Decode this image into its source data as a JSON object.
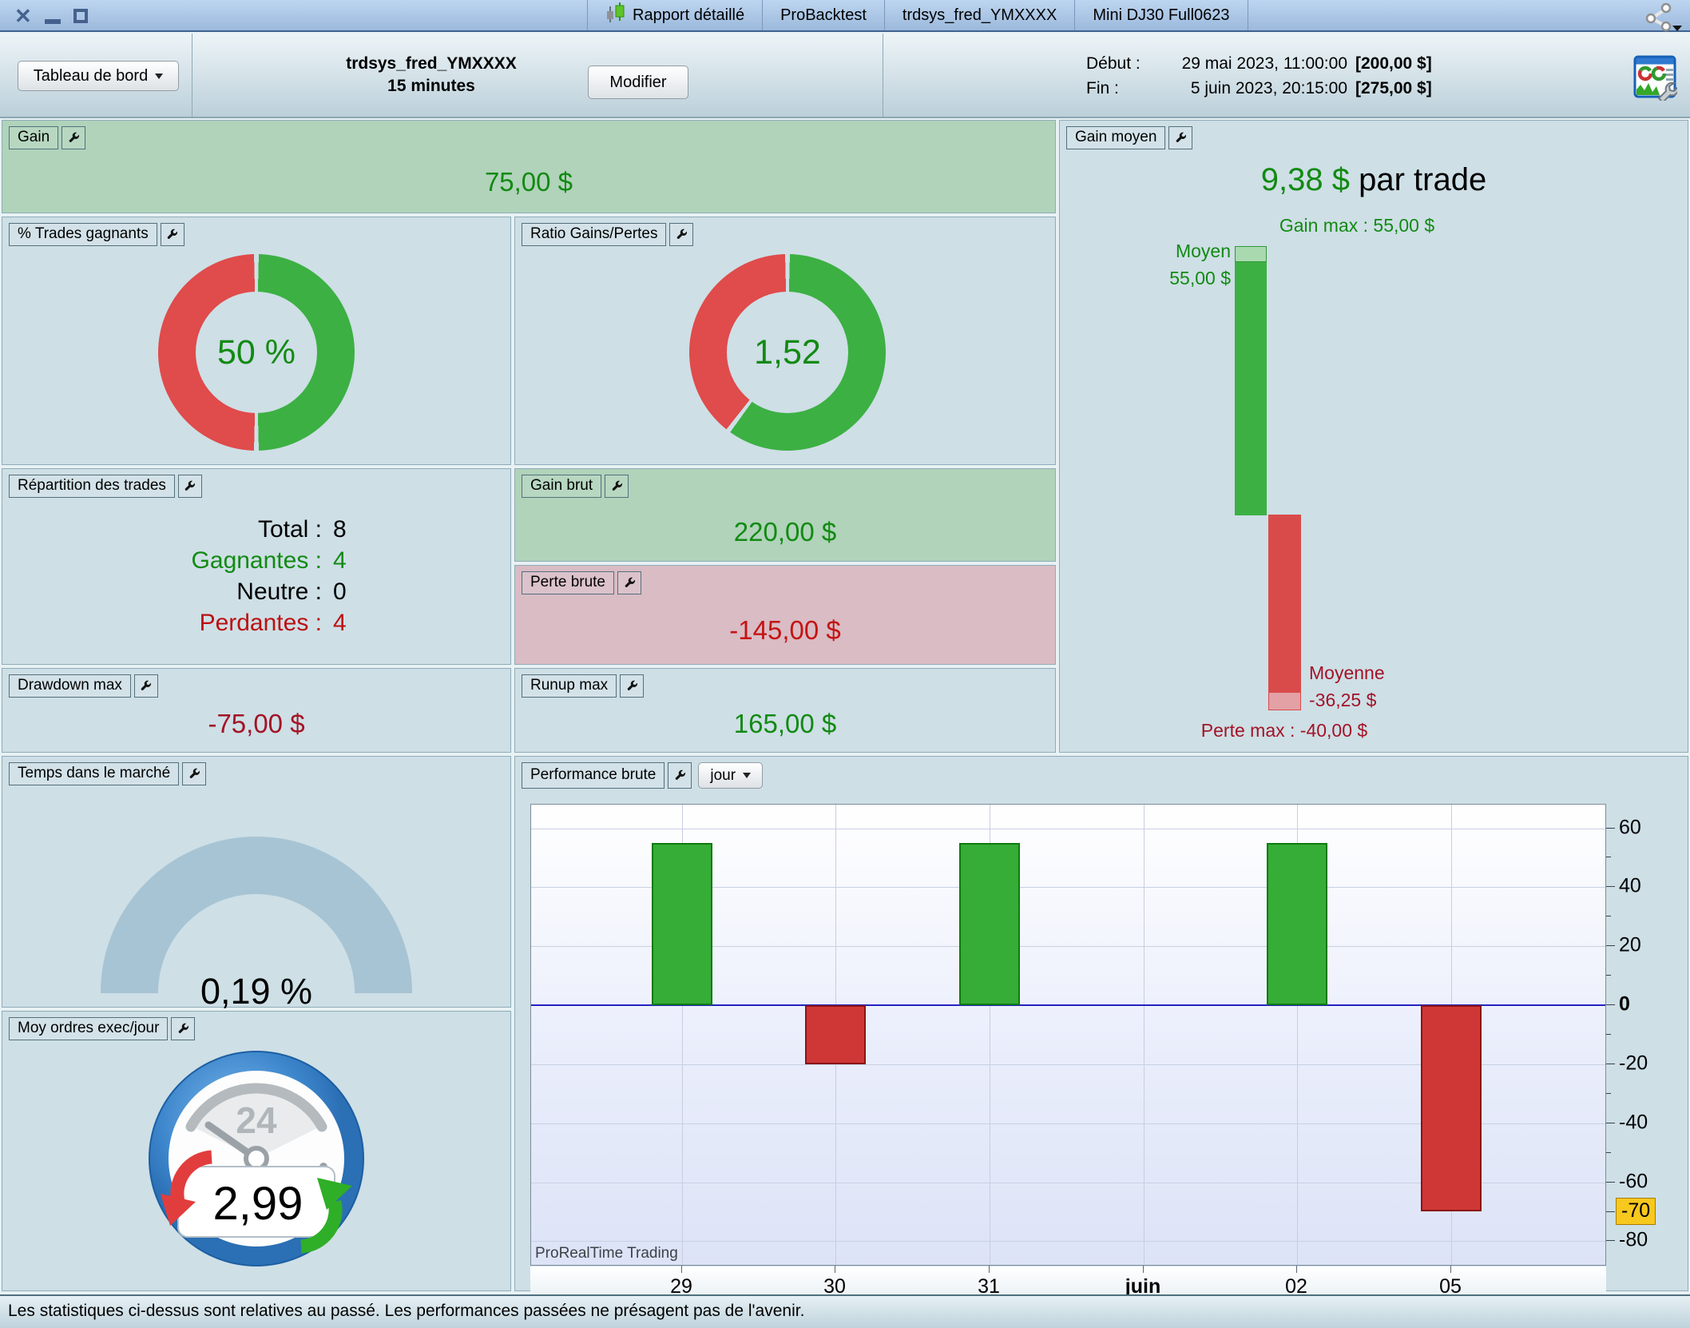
{
  "window": {
    "tabs": [
      {
        "label": "Rapport détaillé",
        "icon": "candlestick-icon"
      },
      {
        "label": "ProBacktest"
      },
      {
        "label": "trdsys_fred_YMXXXX"
      },
      {
        "label": "Mini DJ30 Full0623"
      }
    ]
  },
  "toolbar": {
    "dashboard_button": "Tableau de bord",
    "strategy_name": "trdsys_fred_YMXXXX",
    "timeframe": "15 minutes",
    "modify_button": "Modifier",
    "start_label": "Début :",
    "start_datetime": "29 mai 2023, 11:00:00",
    "start_amount": "[200,00 $]",
    "end_label": "Fin :",
    "end_datetime": "5 juin 2023, 20:15:00",
    "end_amount": "[275,00 $]"
  },
  "panels": {
    "gain": {
      "title": "Gain",
      "value": "75,00 $"
    },
    "win_rate": {
      "title": "% Trades gagnants",
      "value": "50 %"
    },
    "ratio": {
      "title": "Ratio Gains/Pertes",
      "value": "1,52"
    },
    "gain_moyen": {
      "title": "Gain moyen",
      "value": "9,38 $",
      "value_suffix": " par trade",
      "gain_max_label": "Gain max : 55,00 $",
      "avg_win_label": "Moyen",
      "avg_win_value": "55,00 $",
      "avg_loss_label": "Moyenne",
      "avg_loss_value": "-36,25 $",
      "loss_max_label": "Perte max : -40,00 $"
    },
    "repartition": {
      "title": "Répartition des trades",
      "rows": [
        {
          "label": "Total :",
          "value": "8",
          "color": "#000000"
        },
        {
          "label": "Gagnantes :",
          "value": "4",
          "color": "#128a12"
        },
        {
          "label": "Neutre :",
          "value": "0",
          "color": "#000000"
        },
        {
          "label": "Perdantes :",
          "value": "4",
          "color": "#bb1111"
        }
      ]
    },
    "gain_brut": {
      "title": "Gain brut",
      "value": "220,00 $"
    },
    "perte_brute": {
      "title": "Perte brute",
      "value": "-145,00 $"
    },
    "drawdown": {
      "title": "Drawdown max",
      "value": "-75,00 $"
    },
    "runup": {
      "title": "Runup max",
      "value": "165,00 $"
    },
    "temps_marche": {
      "title": "Temps dans le marché",
      "value": "0,19 %"
    },
    "ordres_jour": {
      "title": "Moy ordres exec/jour",
      "value": "2,99",
      "dial_label": "24"
    },
    "performance": {
      "title": "Performance brute",
      "period_button": "jour",
      "watermark": "ProRealTime Trading"
    }
  },
  "status_bar": {
    "text": "Les statistiques ci-dessus sont relatives au passé. Les performances passées ne présagent pas de l'avenir."
  },
  "colors": {
    "green_text": "#128a12",
    "red_text": "#c41414",
    "dark_red_text": "#a31326",
    "gain_panel_bg": "#b0d3ba",
    "loss_panel_bg": "#d9bcc4",
    "gauge_arc": "#a7c4d4"
  },
  "chart_data": [
    {
      "id": "win_rate_donut",
      "type": "pie",
      "labels": [
        "Trades gagnants",
        "Trades perdants"
      ],
      "values_pct": [
        50,
        50
      ],
      "center_text": "50 %",
      "colors": [
        "#3cb043",
        "#e04b4b"
      ]
    },
    {
      "id": "ratio_donut",
      "type": "pie",
      "labels": [
        "Gains",
        "Pertes"
      ],
      "values_pct": [
        60.3,
        39.7
      ],
      "center_text": "1,52",
      "colors": [
        "#3cb043",
        "#e04b4b"
      ]
    },
    {
      "id": "gain_moyen_bars",
      "type": "bar",
      "bars": [
        {
          "name": "Gain",
          "max": 55,
          "avg": 55,
          "color": "#3cb043",
          "avg_color": "#a9d9ae",
          "border": "#2f9838"
        },
        {
          "name": "Perte",
          "max": -40,
          "avg": -36.25,
          "color": "#d94b4b",
          "avg_color": "#e3a0a5",
          "border": "#d94b4b"
        }
      ],
      "unit": "$"
    },
    {
      "id": "time_in_market_gauge",
      "type": "gauge",
      "value_pct": 0.19,
      "range": [
        0,
        100
      ],
      "arc_color": "#a7c4d4"
    },
    {
      "id": "daily_performance",
      "type": "bar",
      "title": "Performance brute (jour)",
      "categories": [
        "29",
        "30",
        "31",
        "juin",
        "02",
        "05"
      ],
      "values": [
        55,
        -20,
        55,
        null,
        55,
        -70
      ],
      "bold_categories": [
        "juin"
      ],
      "ylim": [
        -88,
        68
      ],
      "yticks": [
        60,
        40,
        20,
        0,
        -20,
        -40,
        -60,
        -80
      ],
      "ytick_minor_step": 10,
      "highlight_tick": {
        "value": -70,
        "bg": "#f7c81e",
        "border": "#a87c00"
      },
      "up_color": "#36ad36",
      "up_border": "#0f7a0f",
      "down_color": "#cf3737",
      "down_border": "#8a1414",
      "zero_line_color": "#2323c2",
      "grid": true,
      "legend": null
    }
  ]
}
